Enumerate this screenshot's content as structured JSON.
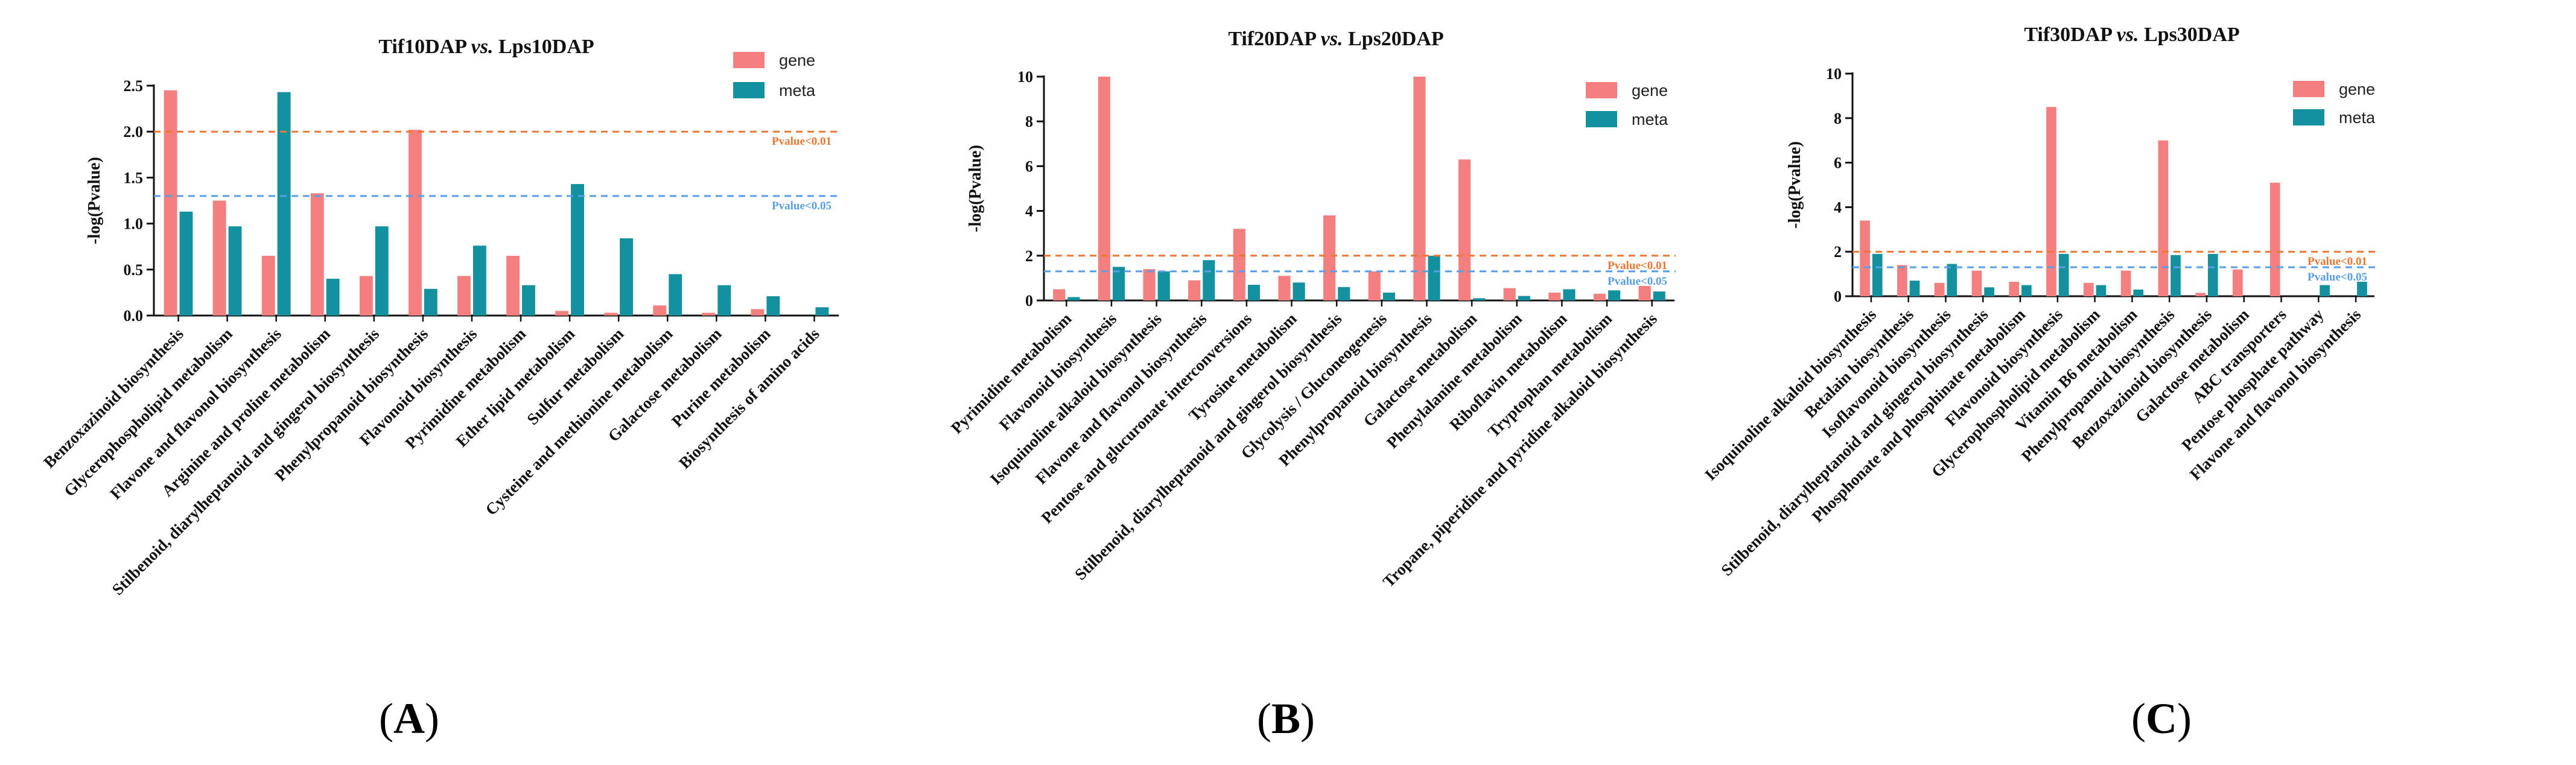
{
  "colors": {
    "gene": "#f47f7f",
    "meta": "#13919f",
    "p001": "#ee7733",
    "p005": "#5a9ee6"
  },
  "chart_data": [
    {
      "type": "bar",
      "panel": "A",
      "panel_label": "(A)",
      "title": "Tif10DAP vs. Lps10DAP",
      "title_parts": [
        "Tif10DAP ",
        "vs.",
        " Lps10DAP"
      ],
      "ylabel": "-log(Pvalue)",
      "ylim": [
        0,
        2.5
      ],
      "yticks": [
        "0.0",
        "0.5",
        "1.0",
        "1.5",
        "2.0",
        "2.5"
      ],
      "threshold_labels": [
        "Pvalue<0.01",
        "Pvalue<0.05"
      ],
      "thresholds": [
        2,
        1.3
      ],
      "legend": [
        "gene",
        "meta"
      ],
      "categories": [
        "Benzoxazinoid biosynthesis",
        "Glycerophospholipid metabolism",
        "Flavone and flavonol biosynthesis",
        "Arginine and proline metabolism",
        "Stilbenoid, diarylheptanoid and gingerol biosynthesis",
        "Phenylpropanoid biosynthesis",
        "Flavonoid biosynthesis",
        "Pyrimidine metabolism",
        "Ether lipid metabolism",
        "Sulfur metabolism",
        "Cysteine and methionine metabolism",
        "Galactose metabolism",
        "Purine metabolism",
        "Biosynthesis of amino acids"
      ],
      "series": [
        {
          "name": "gene",
          "values": [
            2.45,
            1.25,
            0.65,
            1.33,
            0.43,
            2.02,
            0.43,
            0.65,
            0.05,
            0.03,
            0.11,
            0.03,
            0.07,
            0.0
          ]
        },
        {
          "name": "meta",
          "values": [
            1.13,
            0.97,
            2.43,
            0.4,
            0.97,
            0.29,
            0.76,
            0.33,
            1.43,
            0.84,
            0.45,
            0.33,
            0.21,
            0.09
          ]
        }
      ]
    },
    {
      "type": "bar",
      "panel": "B",
      "panel_label": "(B)",
      "title": "Tif20DAP vs. Lps20DAP",
      "title_parts": [
        "Tif20DAP ",
        "vs.",
        " Lps20DAP"
      ],
      "ylabel": "-log(Pvalue)",
      "ylim": [
        0,
        10
      ],
      "yticks": [
        "0",
        "2",
        "4",
        "6",
        "8",
        "10"
      ],
      "threshold_labels": [
        "Pvalue<0.01",
        "Pvalue<0.05"
      ],
      "thresholds": [
        2,
        1.3
      ],
      "legend": [
        "gene",
        "meta"
      ],
      "categories": [
        "Pyrimidine metabolism",
        "Flavonoid biosynthesis",
        "Isoquinoline alkaloid biosynthesis",
        "Flavone and flavonol biosynthesis",
        "Pentose and glucuronate interconversions",
        "Tyrosine metabolism",
        "Stilbenoid, diarylheptanoid and gingerol biosynthesis",
        "Glycolysis / Gluconeogenesis",
        "Phenylpropanoid biosynthesis",
        "Galactose metabolism",
        "Phenylalanine metabolism",
        "Riboflavin metabolism",
        "Tryptophan metabolism",
        "Tropane, piperidine and pyridine alkaloid biosynthesis"
      ],
      "series": [
        {
          "name": "gene",
          "values": [
            0.5,
            10.0,
            1.4,
            0.9,
            3.2,
            1.1,
            3.8,
            1.3,
            10.0,
            6.3,
            0.55,
            0.35,
            0.3,
            0.65
          ]
        },
        {
          "name": "meta",
          "values": [
            0.15,
            1.5,
            1.3,
            1.8,
            0.7,
            0.8,
            0.6,
            0.35,
            2.0,
            0.1,
            0.2,
            0.5,
            0.45,
            0.4
          ]
        }
      ]
    },
    {
      "type": "bar",
      "panel": "C",
      "panel_label": "(C)",
      "title": "Tif30DAP vs. Lps30DAP",
      "title_parts": [
        "Tif30DAP ",
        "vs.",
        " Lps30DAP"
      ],
      "ylabel": "-log(Pvalue)",
      "ylim": [
        0,
        10
      ],
      "yticks": [
        "0",
        "2",
        "4",
        "6",
        "8",
        "10"
      ],
      "threshold_labels": [
        "Pvalue<0.01",
        "Pvalue<0.05"
      ],
      "thresholds": [
        2,
        1.3
      ],
      "legend": [
        "gene",
        "meta"
      ],
      "categories": [
        "Isoquinoline alkaloid biosynthesis",
        "Betalain biosynthesis",
        "Isoflavonoid biosynthesis",
        "Stilbenoid, diarylheptanoid and gingerol biosynthesis",
        "Phosphonate and phosphinate metabolism",
        "Flavonoid biosynthesis",
        "Glycerophospholipid metabolism",
        "Vitamin B6 metabolism",
        "Phenylpropanoid biosynthesis",
        "Benzoxazinoid biosynthesis",
        "Galactose metabolism",
        "ABC transporters",
        "Pentose phosphate pathway",
        "Flavone and flavonol biosynthesis"
      ],
      "series": [
        {
          "name": "gene",
          "values": [
            3.4,
            1.4,
            0.6,
            1.15,
            0.65,
            8.5,
            0.6,
            1.15,
            7.0,
            0.15,
            1.2,
            5.1,
            0.0,
            0.0
          ]
        },
        {
          "name": "meta",
          "values": [
            1.9,
            0.7,
            1.45,
            0.4,
            0.5,
            1.9,
            0.5,
            0.3,
            1.85,
            1.9,
            0.0,
            0.0,
            0.5,
            0.65
          ]
        }
      ]
    }
  ]
}
